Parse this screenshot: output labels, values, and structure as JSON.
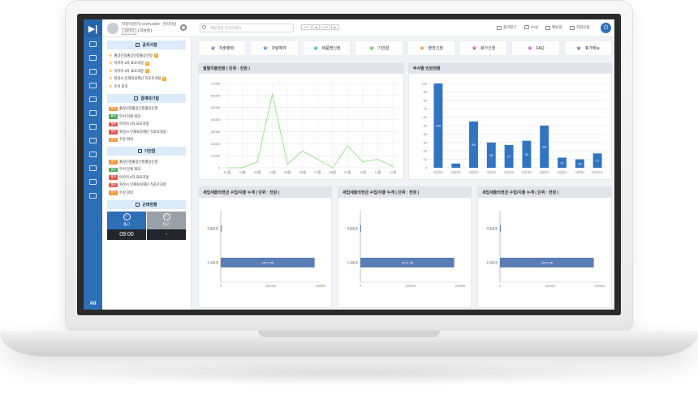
{
  "user": {
    "name": "박정미(원가) CNPLOER",
    "role": "관리자님",
    "tag": "관리자",
    "dept": "[ 리뉴얼 ]"
  },
  "search": {
    "placeholder": "메뉴명을 입력하세요"
  },
  "pager": [
    "125",
    "◀",
    "105",
    "▶"
  ],
  "top_links": [
    {
      "label": "즐겨찾기",
      "icon": "star-icon"
    },
    {
      "label": "FAQ",
      "icon": "chat-icon"
    },
    {
      "label": "매뉴얼",
      "icon": "book-icon"
    },
    {
      "label": "지원요청",
      "icon": "support-icon"
    }
  ],
  "brand": "Alt",
  "sidebar_icons": [
    "home-icon",
    "grid-icon",
    "mail-icon",
    "users-icon",
    "user-icon",
    "building-icon",
    "org-icon",
    "calendar-icon",
    "chart-icon",
    "monitor-icon",
    "doc-icon",
    "settings-icon"
  ],
  "notices": {
    "title": "공지사항",
    "items": [
      "출장신청출장신청출장신청",
      "아카이 2차 표로과정",
      "아카이 2차 표로과정",
      "화성시 인재육성재단 직포로과정",
      "수강 회의"
    ],
    "new_flags": [
      true,
      true,
      true,
      true,
      false
    ]
  },
  "approvals": {
    "title": "결재대기함",
    "items": [
      {
        "tag": "휴가",
        "color": "#f0963a",
        "text": "출장신청출장신청출장신청"
      },
      {
        "tag": "출장",
        "color": "#4aa85a",
        "text": "부서 전체 회의"
      },
      {
        "tag": "경조",
        "color": "#e8554b",
        "text": "아카이 2차 표로과정"
      },
      {
        "tag": "경조",
        "color": "#e8554b",
        "text": "화성시 인재육성재단 직포로과정 ·"
      },
      {
        "tag": "휴가",
        "color": "#f0963a",
        "text": "수강 회의"
      }
    ]
  },
  "drafts": {
    "title": "기안함",
    "items": [
      {
        "tag": "휴가",
        "color": "#f0963a",
        "text": "출장신청출장신청출장신청"
      },
      {
        "tag": "출장",
        "color": "#4aa85a",
        "text": "부서 전체 회의"
      },
      {
        "tag": "경조",
        "color": "#e8554b",
        "text": "아카이 2차 표로과정"
      },
      {
        "tag": "경조",
        "color": "#e8554b",
        "text": "화성시 인재육성재단 직포로과정"
      },
      {
        "tag": "휴가",
        "color": "#f0963a",
        "text": "수강 회의"
      }
    ]
  },
  "attendance": {
    "title": "근태현황",
    "in": {
      "label": "출근",
      "time": "09:00"
    },
    "out": {
      "label": "퇴근",
      "time": "-"
    }
  },
  "quick_menu": [
    {
      "label": "자출출퇴",
      "color": "#6b74d6"
    },
    {
      "label": "차량예약",
      "color": "#4a8fe0"
    },
    {
      "label": "제품명신청",
      "color": "#27b5c4"
    },
    {
      "label": "기안함",
      "color": "#5cc14a"
    },
    {
      "label": "출장신청",
      "color": "#f0963a"
    },
    {
      "label": "휴가신청",
      "color": "#e8557a"
    },
    {
      "label": "FAQ",
      "color": "#c85fd0"
    },
    {
      "label": "휴가메뉴",
      "color": "#6b74d6"
    }
  ],
  "chart_data": [
    {
      "type": "line",
      "title": "월별지출현황 ( 단위 : 천원 )",
      "categories": [
        "01월",
        "02월",
        "03월",
        "04월",
        "05월",
        "06월",
        "07월",
        "08월",
        "09월",
        "10월",
        "11월",
        "12월"
      ],
      "values": [
        0,
        0,
        5000,
        61000,
        3000,
        14000,
        7000,
        0,
        18000,
        5000,
        7000,
        1000
      ],
      "ylim": [
        0,
        70000
      ],
      "yticks": [
        "0",
        "10000",
        "20000",
        "30000",
        "40000",
        "50000",
        "60000",
        "70000"
      ],
      "color": "#9be38f",
      "grid": true
    },
    {
      "type": "bar",
      "title": "부서별 인원현황",
      "categories": [
        "이콘부1",
        "이콘부2",
        "이콘부3",
        "이콘부4",
        "이콘부5",
        "이콘부6",
        "이콘부7",
        "이콘부8",
        "이콘부9",
        "이콘부10"
      ],
      "values": [
        100,
        5,
        55,
        30,
        27,
        32,
        50,
        12,
        10,
        17
      ],
      "labels": [
        "100",
        "",
        "55",
        "30",
        "27",
        "32",
        "50",
        "12",
        "10",
        "17"
      ],
      "ylim": [
        0,
        100
      ],
      "yticks": [
        "0",
        "10",
        "20",
        "30",
        "40",
        "50",
        "60",
        "70",
        "80",
        "90",
        "100"
      ],
      "color": "#3174c4",
      "grid": true
    },
    {
      "type": "bar",
      "orientation": "horizontal",
      "title": "세입세출외현금 수입/지출 누계 ( 단위 : 천원 )",
      "categories": [
        "지출합계",
        "수입합계"
      ],
      "values": [
        0,
        1071.46
      ],
      "label": "1071.46",
      "xticks": [
        "0",
        "100000",
        "200000"
      ],
      "color": "#5b7db6"
    },
    {
      "type": "bar",
      "orientation": "horizontal",
      "title": "세입세출외현금 수입/지출 누계 ( 단위 : 천원 )",
      "categories": [
        "지출합계",
        "수입합계"
      ],
      "values": [
        0,
        1071.46
      ],
      "label": "1071.46",
      "xticks": [
        "0",
        "100000",
        "200000"
      ],
      "color": "#5b7db6"
    },
    {
      "type": "bar",
      "orientation": "horizontal",
      "title": "세입세출외현금 수입/지출 누계 ( 단위 : 천원 )",
      "categories": [
        "지출합계",
        "수입합계"
      ],
      "values": [
        0,
        1071.46
      ],
      "label": "1071.46",
      "xticks": [
        "0",
        "100000",
        "200000"
      ],
      "color": "#5b7db6"
    }
  ]
}
